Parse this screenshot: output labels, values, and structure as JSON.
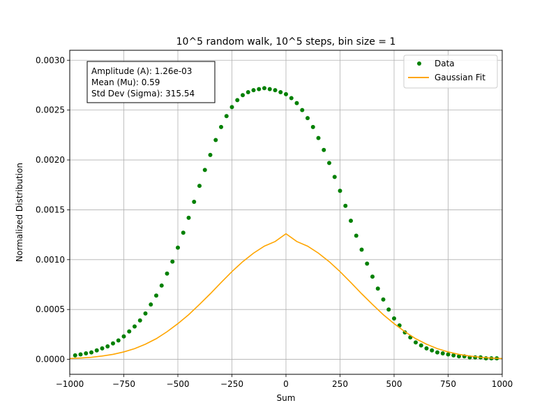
{
  "chart_data": {
    "type": "scatter",
    "title": "10^5 random walk, 10^5 steps, bin size = 1",
    "xlabel": "Sum",
    "ylabel": "Normalized Distribution",
    "xlim": [
      -1000,
      1000
    ],
    "ylim": [
      -0.00015,
      0.0031
    ],
    "x_ticks": [
      -1000,
      -750,
      -500,
      -250,
      0,
      250,
      500,
      750,
      1000
    ],
    "x_tick_labels": [
      "−1000",
      "−750",
      "−500",
      "−250",
      "0",
      "250",
      "500",
      "750",
      "1000"
    ],
    "y_ticks": [
      0,
      0.0005,
      0.001,
      0.0015,
      0.002,
      0.0025,
      0.003
    ],
    "y_tick_labels": [
      "0.0000",
      "0.0005",
      "0.0010",
      "0.0015",
      "0.0020",
      "0.0025",
      "0.0030"
    ],
    "grid": true,
    "legend_position": "top-right",
    "series": [
      {
        "name": "Data",
        "kind": "scatter",
        "color": "#008000",
        "x": [
          -975,
          -950,
          -925,
          -900,
          -875,
          -850,
          -825,
          -800,
          -775,
          -750,
          -725,
          -700,
          -675,
          -650,
          -625,
          -600,
          -575,
          -550,
          -525,
          -500,
          -475,
          -450,
          -425,
          -400,
          -375,
          -350,
          -325,
          -300,
          -275,
          -250,
          -225,
          -200,
          -175,
          -150,
          -125,
          -100,
          -75,
          -50,
          -25,
          0,
          25,
          50,
          75,
          100,
          125,
          150,
          175,
          200,
          225,
          250,
          275,
          300,
          325,
          350,
          375,
          400,
          425,
          450,
          475,
          500,
          525,
          550,
          575,
          600,
          625,
          650,
          675,
          700,
          725,
          750,
          775,
          800,
          825,
          850,
          875,
          900,
          925,
          950,
          975
        ],
        "y": [
          4e-05,
          5e-05,
          6e-05,
          7e-05,
          9e-05,
          0.00011,
          0.00013,
          0.00016,
          0.00019,
          0.00023,
          0.00028,
          0.00033,
          0.00039,
          0.00046,
          0.00055,
          0.00064,
          0.00074,
          0.00086,
          0.00098,
          0.00112,
          0.00127,
          0.00142,
          0.00158,
          0.00174,
          0.0019,
          0.00205,
          0.0022,
          0.00233,
          0.00244,
          0.00253,
          0.0026,
          0.00265,
          0.00268,
          0.0027,
          0.00271,
          0.00272,
          0.00271,
          0.0027,
          0.00268,
          0.00266,
          0.00262,
          0.00257,
          0.0025,
          0.00242,
          0.00233,
          0.00222,
          0.0021,
          0.00197,
          0.00183,
          0.00169,
          0.00154,
          0.00139,
          0.00124,
          0.0011,
          0.00096,
          0.00083,
          0.00071,
          0.0006,
          0.0005,
          0.00041,
          0.00034,
          0.00027,
          0.00022,
          0.00017,
          0.00014,
          0.00011,
          9e-05,
          7e-05,
          6e-05,
          5e-05,
          4e-05,
          3e-05,
          3e-05,
          2e-05,
          2e-05,
          2e-05,
          1e-05,
          1e-05,
          1e-05
        ]
      },
      {
        "name": "Gaussian Fit",
        "kind": "line",
        "color": "#ffa500",
        "x": [
          -1000,
          -950,
          -900,
          -850,
          -800,
          -750,
          -700,
          -650,
          -600,
          -550,
          -500,
          -450,
          -400,
          -350,
          -300,
          -250,
          -200,
          -150,
          -100,
          -50,
          0,
          50,
          100,
          150,
          200,
          250,
          300,
          350,
          400,
          450,
          500,
          550,
          600,
          650,
          700,
          750,
          800,
          850,
          900,
          950,
          1000
        ],
        "y": [
          8.5e-06,
          1.34e-05,
          2.07e-05,
          3.33e-05,
          5.02e-05,
          7.46e-05,
          0.0001075,
          0.0001519,
          0.0002071,
          0.0002771,
          0.0003582,
          0.0004481,
          0.0005509,
          0.0006581,
          0.0007704,
          0.0008802,
          0.0009799,
          0.0010653,
          0.0011356,
          0.0011822,
          0.00126,
          0.0011822,
          0.0011356,
          0.0010653,
          0.0009799,
          0.0008802,
          0.0007704,
          0.0006581,
          0.0005509,
          0.0004481,
          0.0003582,
          0.0002771,
          0.0002071,
          0.0001519,
          0.0001075,
          7.46e-05,
          5.02e-05,
          3.33e-05,
          2.07e-05,
          1.34e-05,
          8.5e-06
        ]
      }
    ],
    "annotation_lines": [
      "Amplitude (A): 1.26e-03",
      "Mean (Mu): 0.59",
      "Std Dev (Sigma): 315.54"
    ]
  }
}
